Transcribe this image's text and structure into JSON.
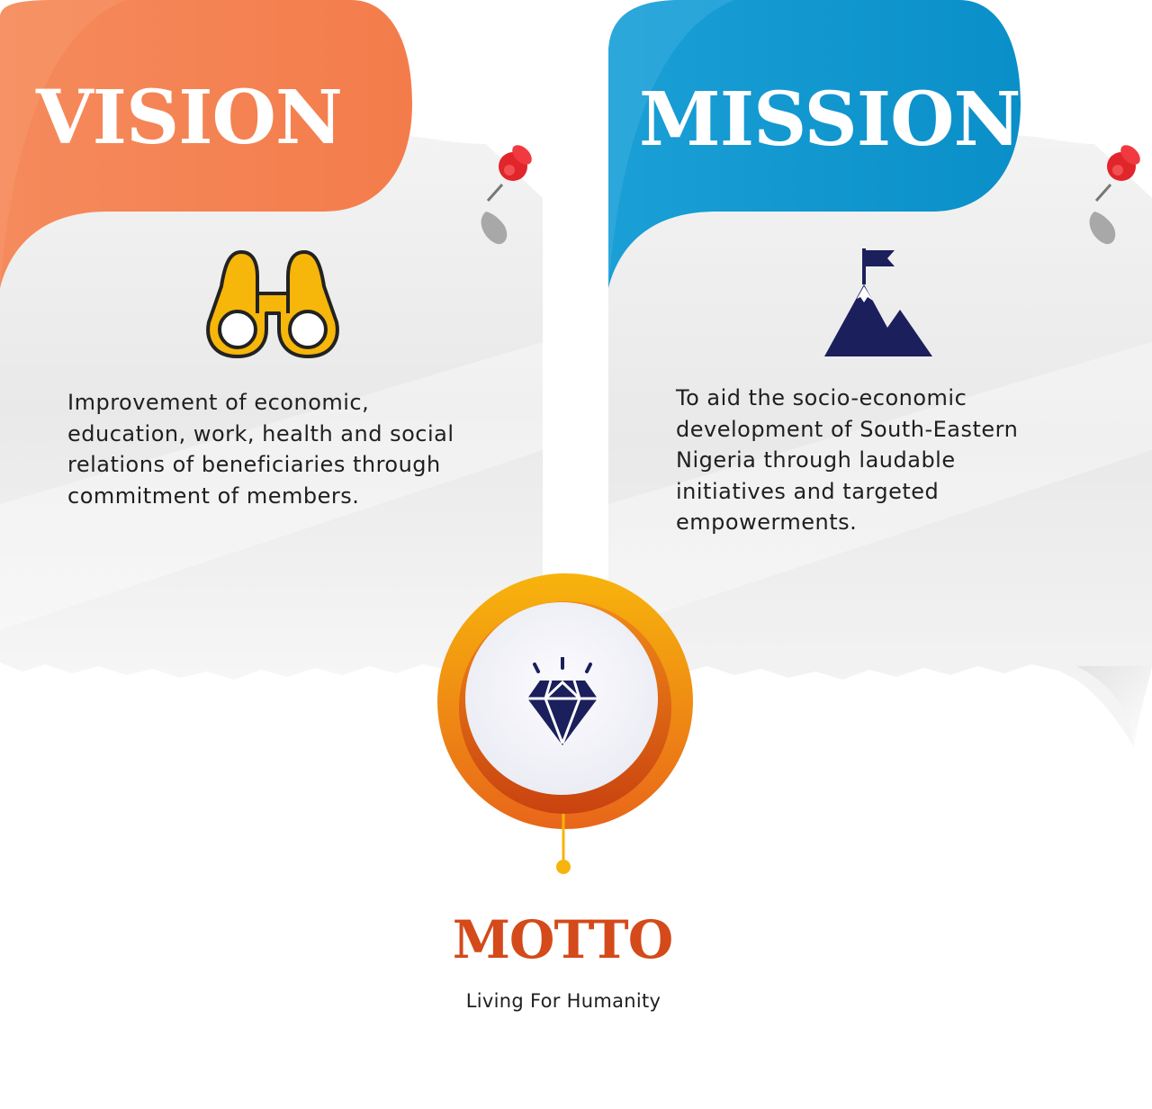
{
  "vision": {
    "heading": "VISION",
    "icon": "binoculars-icon",
    "text": "Improvement of economic, education, work, health and social relations of beneficiaries through commitment of members.",
    "color": "#f47c4b"
  },
  "mission": {
    "heading": "MISSION",
    "icon": "mountain-flag-icon",
    "text": "To aid the socio-economic development of South-Eastern Nigeria through laudable initiatives and targeted empowerments.",
    "color": "#0a8fc8"
  },
  "motto": {
    "heading": "MOTTO",
    "icon": "diamond-icon",
    "text": "Living For Humanity",
    "color": "#d44a1a"
  }
}
